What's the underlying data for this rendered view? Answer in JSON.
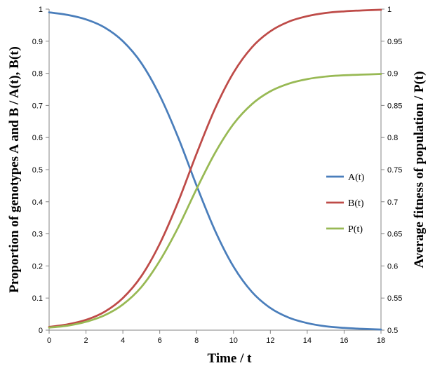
{
  "chart_data": {
    "type": "line",
    "xlabel": "Time / t",
    "ylabel": "Proportion of genotypes A and B / A(t), B(t)",
    "y2label": "Average fitness of population / P(t)",
    "xlim": [
      0,
      18
    ],
    "ylim": [
      0,
      1
    ],
    "y2lim": [
      0.5,
      1
    ],
    "xticks": [
      "0",
      "2",
      "4",
      "6",
      "8",
      "10",
      "12",
      "14",
      "16",
      "18"
    ],
    "yticks": [
      "0",
      "0.1",
      "0.2",
      "0.3",
      "0.4",
      "0.5",
      "0.6",
      "0.7",
      "0.8",
      "0.9",
      "1"
    ],
    "y2ticks": [
      "0.5",
      "0.55",
      "0.6",
      "0.65",
      "0.7",
      "0.75",
      "0.8",
      "0.85",
      "0.9",
      "0.95",
      "1"
    ],
    "grid": false,
    "legend_position": "right",
    "x": [
      0,
      1,
      2,
      3,
      4,
      5,
      6,
      7,
      8,
      9,
      10,
      11,
      12,
      13,
      14,
      15,
      16,
      17,
      18
    ],
    "series": [
      {
        "name": "A(t)",
        "axis": "left",
        "color": "#4a7ebb",
        "values": [
          0.99,
          0.982,
          0.968,
          0.943,
          0.9,
          0.832,
          0.731,
          0.6,
          0.45,
          0.31,
          0.198,
          0.119,
          0.069,
          0.039,
          0.022,
          0.012,
          0.007,
          0.004,
          0.002
        ]
      },
      {
        "name": "B(t)",
        "axis": "left",
        "color": "#be4b48",
        "values": [
          0.01,
          0.018,
          0.032,
          0.057,
          0.1,
          0.168,
          0.269,
          0.4,
          0.55,
          0.69,
          0.802,
          0.881,
          0.931,
          0.961,
          0.978,
          0.988,
          0.993,
          0.996,
          0.998
        ]
      },
      {
        "name": "P(t)",
        "axis": "right",
        "color": "#98b954",
        "values": [
          0.504,
          0.507,
          0.513,
          0.523,
          0.54,
          0.567,
          0.608,
          0.66,
          0.72,
          0.776,
          0.821,
          0.852,
          0.872,
          0.884,
          0.891,
          0.895,
          0.897,
          0.898,
          0.899
        ]
      }
    ]
  }
}
